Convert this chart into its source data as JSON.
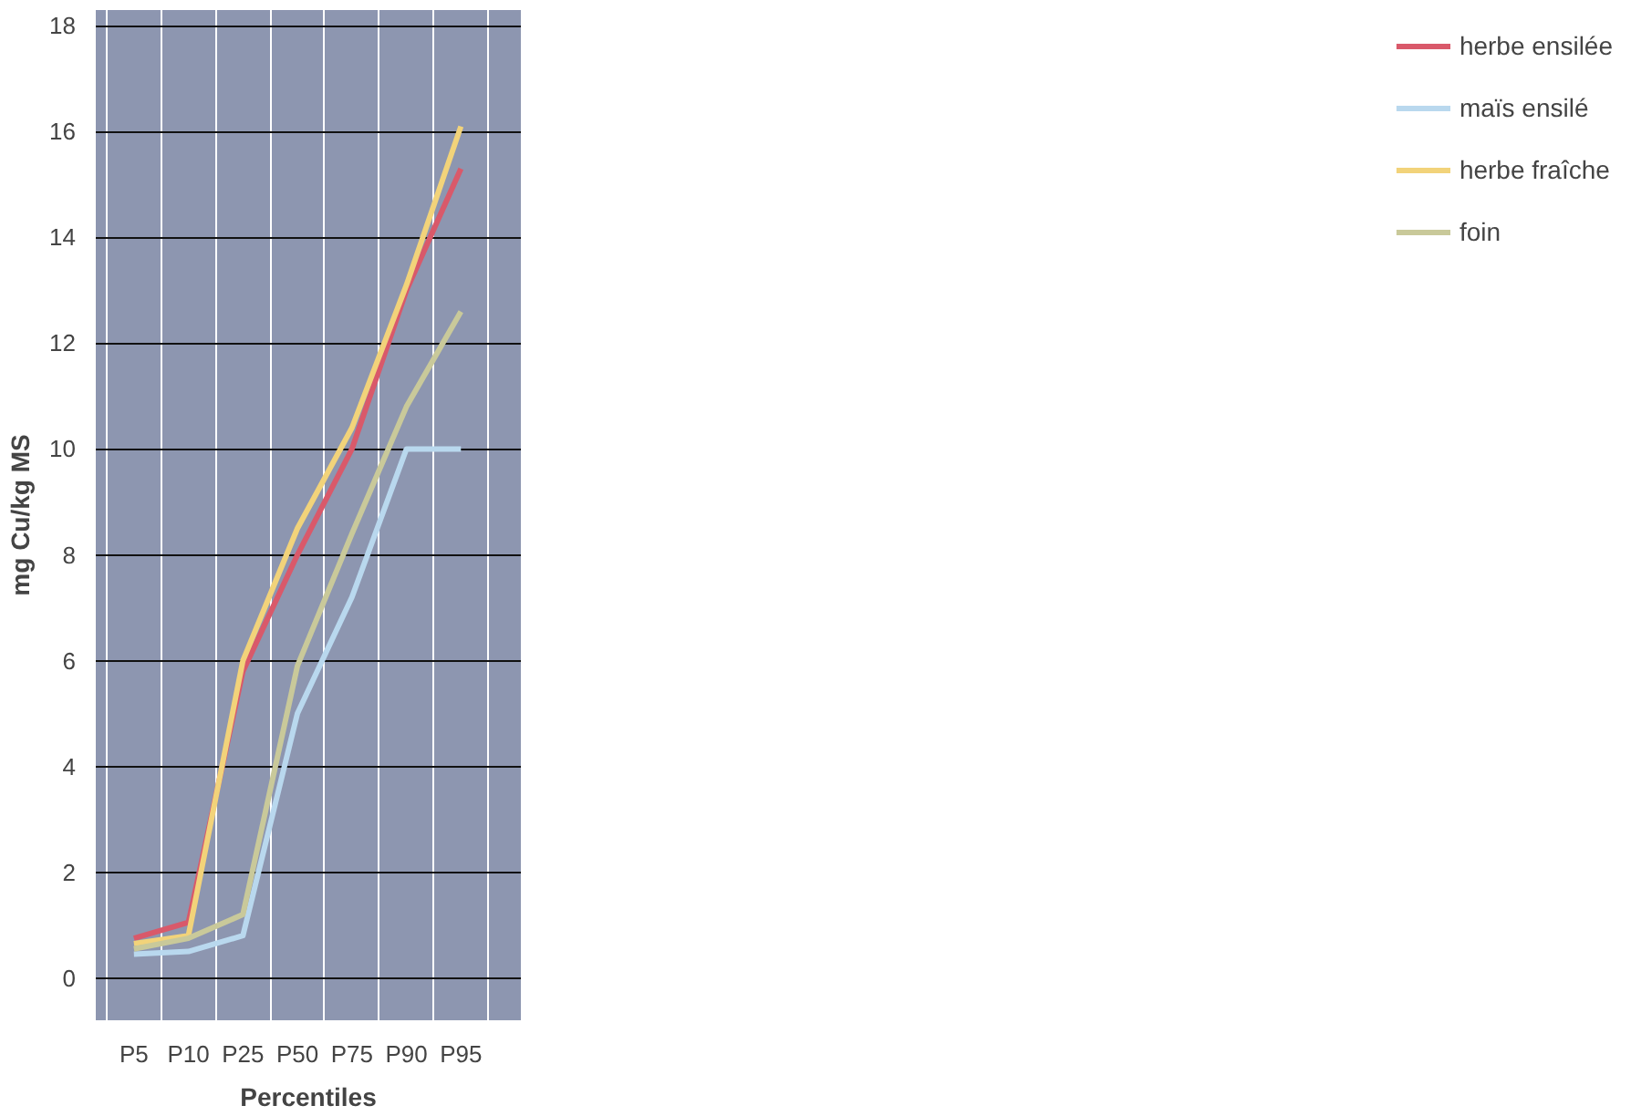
{
  "chart_data": {
    "type": "line",
    "xlabel": "Percentiles",
    "ylabel": "mg Cu/kg MS",
    "categories": [
      "P5",
      "P10",
      "P25",
      "P50",
      "P75",
      "P90",
      "P95"
    ],
    "series": [
      {
        "name": "herbe ensilée",
        "color": "#d9596a",
        "values": [
          0.75,
          1.05,
          5.8,
          8.0,
          10.0,
          13.0,
          15.3
        ]
      },
      {
        "name": "maïs ensilé",
        "color": "#b9d8ee",
        "values": [
          0.45,
          0.5,
          0.8,
          5.0,
          7.2,
          10.0,
          10.0
        ]
      },
      {
        "name": "herbe fraîche",
        "color": "#f2d37a",
        "values": [
          0.65,
          0.8,
          6.0,
          8.5,
          10.4,
          13.1,
          16.1
        ]
      },
      {
        "name": "foin",
        "color": "#c9c99a",
        "values": [
          0.55,
          0.75,
          1.2,
          5.9,
          8.4,
          10.8,
          12.6
        ]
      }
    ],
    "ylim": [
      -0.8,
      18.3
    ],
    "yticks": [
      0,
      2,
      4,
      6,
      8,
      10,
      12,
      14,
      16,
      18
    ],
    "grid": true,
    "legend": "right",
    "line_style": "solid",
    "marker": "none"
  }
}
